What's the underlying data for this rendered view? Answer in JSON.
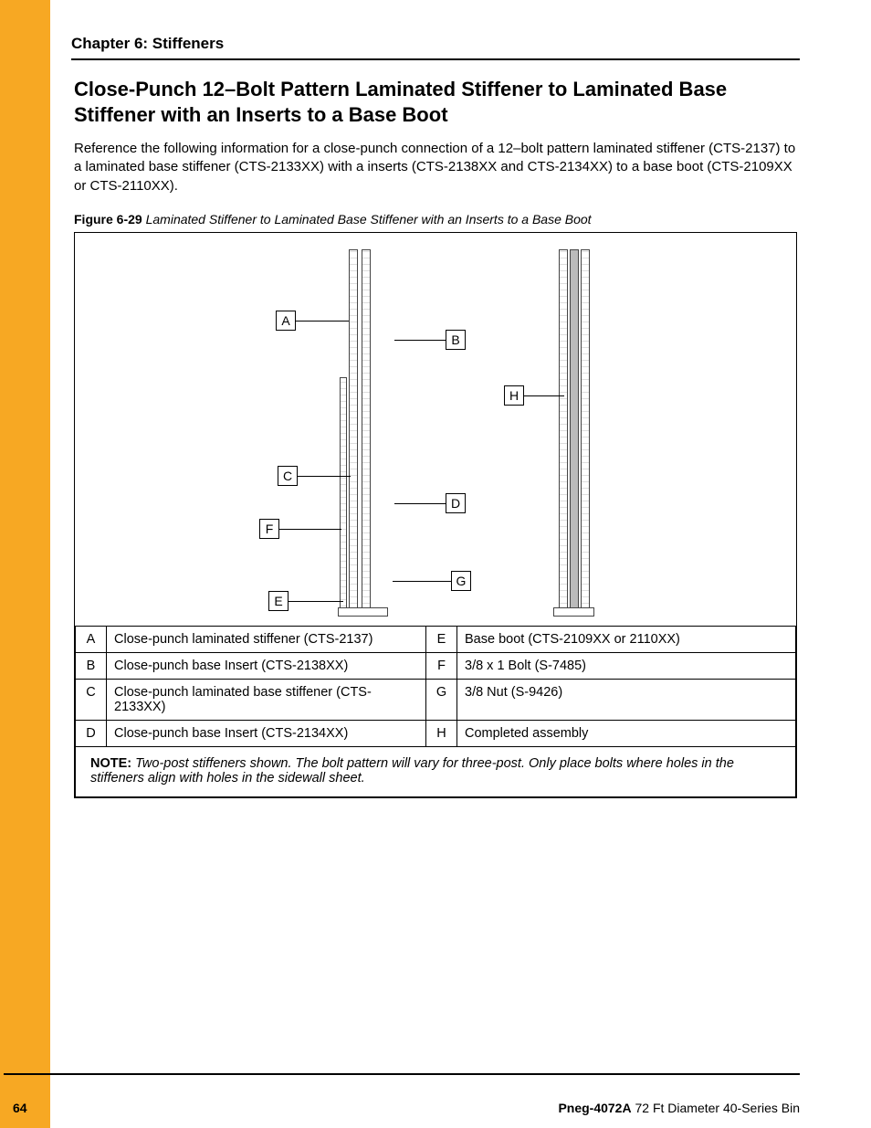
{
  "chapter_header": "Chapter 6: Stiffeners",
  "section_title": "Close-Punch 12–Bolt Pattern Laminated Stiffener to Laminated Base Stiffener with an Inserts to a Base Boot",
  "body_text": "Reference the following information for a close-punch connection of a 12–bolt pattern laminated stiffener (CTS-2137) to a laminated base stiffener (CTS-2133XX) with a inserts (CTS-2138XX and CTS-2134XX) to a base boot (CTS-2109XX or CTS-2110XX).",
  "figure_label": "Figure 6-29",
  "figure_caption": "Laminated Stiffener to Laminated Base Stiffener with an Inserts to a Base Boot",
  "callouts": {
    "A": "A",
    "B": "B",
    "C": "C",
    "D": "D",
    "E": "E",
    "F": "F",
    "G": "G",
    "H": "H"
  },
  "legend": {
    "left": [
      {
        "key": "A",
        "desc": "Close-punch laminated stiffener (CTS-2137)"
      },
      {
        "key": "B",
        "desc": "Close-punch base Insert (CTS-2138XX)"
      },
      {
        "key": "C",
        "desc": "Close-punch laminated base stiffener (CTS-2133XX)"
      },
      {
        "key": "D",
        "desc": "Close-punch base Insert (CTS-2134XX)"
      }
    ],
    "right": [
      {
        "key": "E",
        "desc": "Base boot (CTS-2109XX or 2110XX)"
      },
      {
        "key": "F",
        "desc": "3/8 x 1 Bolt (S-7485)"
      },
      {
        "key": "G",
        "desc": "3/8 Nut (S-9426)"
      },
      {
        "key": "H",
        "desc": "Completed assembly"
      }
    ]
  },
  "note_label": "NOTE:",
  "note_text": "Two-post stiffeners shown. The bolt pattern will vary for three-post. Only place bolts where holes in the stiffeners align with holes in the sidewall sheet.",
  "page_number": "64",
  "doc_id_bold": "Pneg-4072A",
  "doc_id_rest": " 72 Ft Diameter 40-Series Bin",
  "colors": {
    "accent": "#f7a823",
    "text": "#000000",
    "rule": "#000000"
  }
}
